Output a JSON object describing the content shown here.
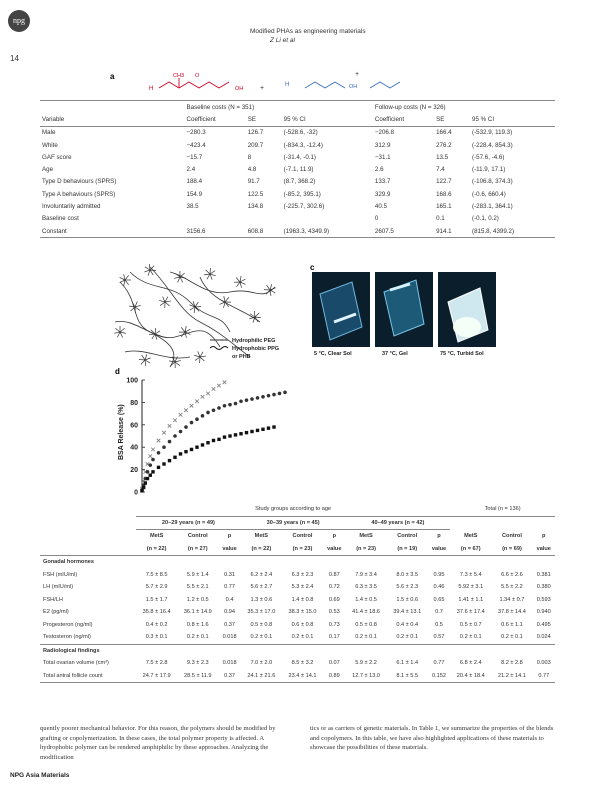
{
  "header": {
    "logo": "npg",
    "title": "Modified PHAs as engineering materials",
    "authors": "Z Li et al",
    "page_number": "14"
  },
  "panels": {
    "a": {
      "label": "a",
      "formula": {
        "h1": "H",
        "ch3": "CH3",
        "o": "O",
        "oh": "OH",
        "plus": "+"
      }
    },
    "c": {
      "label": "c",
      "captions": [
        "5 °C, Clear Sol",
        "37 °C, Gel",
        "75 °C, Turbid Sol"
      ]
    },
    "b": {
      "legend": [
        "Hydrophilic PEG",
        "Hydrophobic PPG or PHB"
      ]
    },
    "d": {
      "label": "d"
    }
  },
  "table1": {
    "group_headers": [
      "Baseline costs (N = 351)",
      "Follow-up costs (N = 326)"
    ],
    "columns": [
      "Variable",
      "Coefficient",
      "SE",
      "95 % CI",
      "Coefficient",
      "SE",
      "95 % CI"
    ],
    "rows": [
      [
        "Male",
        "−280.3",
        "126.7",
        "(-528.6, -32)",
        "−206.8",
        "166.4",
        "(-532.9, 119.3)"
      ],
      [
        "White",
        "−423.4",
        "209.7",
        "(-834.3, -12.4)",
        "312.9",
        "276.2",
        "(-228.4, 854.3)"
      ],
      [
        "GAF score",
        "−15.7",
        "8",
        "(-31.4, -0.1)",
        "−31.1",
        "13.5",
        "(-57.6, -4.6)"
      ],
      [
        "Age",
        "2.4",
        "4.8",
        "(-7.1, 11.9)",
        "2.6",
        "7.4",
        "(-11.9, 17.1)"
      ],
      [
        "Type D behaviours (SPRS)",
        "188.4",
        "91.7",
        "(8.7, 368.2)",
        "133.7",
        "122.7",
        "(-106.8, 374.3)"
      ],
      [
        "Type A behaviours (SPRS)",
        "154.9",
        "122.5",
        "(-85.2, 395.1)",
        "329.9",
        "168.6",
        "(-0.6, 660.4)"
      ],
      [
        "Involuntarily admitted",
        "38.5",
        "134.8",
        "(-225.7, 302.6)",
        "40.5",
        "165.1",
        "(-283.1, 364.1)"
      ],
      [
        "Baseline cost",
        "",
        "",
        "",
        "0",
        "0.1",
        "(-0.1, 0.2)"
      ],
      [
        "Constant",
        "3156.6",
        "608.8",
        "(1963.3, 4349.9)",
        "2607.5",
        "914.1",
        "(815.8, 4399.2)"
      ]
    ]
  },
  "chart_data": {
    "type": "scatter",
    "title": "",
    "xlabel": "",
    "ylabel": "BSA Release (%)",
    "ylim": [
      0,
      100
    ],
    "yticks": [
      "0",
      "20",
      "40",
      "60",
      "80",
      "100"
    ],
    "xlim": [
      0,
      30
    ],
    "series": [
      {
        "marker": "x",
        "x": [
          0,
          0.3,
          0.6,
          1,
          1.5,
          2,
          3,
          4,
          5,
          6,
          7,
          8,
          9,
          10,
          11,
          12,
          13,
          14,
          15
        ],
        "y": [
          3,
          10,
          18,
          25,
          32,
          38,
          46,
          53,
          59,
          64,
          69,
          73,
          77,
          81,
          85,
          88,
          92,
          95,
          98
        ]
      },
      {
        "marker": "circle",
        "x": [
          0,
          0.3,
          0.6,
          1,
          1.5,
          2,
          3,
          4,
          5,
          6,
          7,
          8,
          9,
          10,
          11,
          12,
          13,
          14,
          15,
          16,
          17,
          18,
          19,
          20,
          21,
          22,
          23,
          24,
          25,
          26
        ],
        "y": [
          2,
          6,
          12,
          18,
          24,
          29,
          35,
          40,
          45,
          50,
          54,
          58,
          62,
          65,
          68,
          71,
          73,
          75,
          77,
          78,
          79,
          81,
          82,
          83,
          84,
          85,
          86,
          87,
          88,
          89
        ]
      },
      {
        "marker": "square",
        "x": [
          0,
          0.3,
          0.6,
          1,
          1.5,
          2,
          3,
          4,
          5,
          6,
          7,
          8,
          9,
          10,
          11,
          12,
          13,
          14,
          15,
          16,
          17,
          18,
          19,
          20,
          21,
          22,
          23,
          24
        ],
        "y": [
          1,
          4,
          8,
          12,
          15,
          18,
          22,
          25,
          28,
          31,
          34,
          36,
          38,
          40,
          42,
          44,
          46,
          47,
          49,
          50,
          51,
          52,
          53,
          54,
          55,
          56,
          57,
          58
        ]
      }
    ]
  },
  "table2": {
    "title": "Study groups according to age",
    "total": "Total (n = 136)",
    "age_groups": [
      "20–29 years (n = 49)",
      "30–39 years (n = 45)",
      "40–49 years (n = 42)"
    ],
    "col_heads": [
      [
        "MetS",
        "(n = 22)"
      ],
      [
        "Control",
        "(n = 27)"
      ],
      [
        "p",
        "value"
      ],
      [
        "MetS",
        "(n = 22)"
      ],
      [
        "Control",
        "(n = 23)"
      ],
      [
        "p",
        "value"
      ],
      [
        "MetS",
        "(n = 23)"
      ],
      [
        "Control",
        "(n = 19)"
      ],
      [
        "p",
        "value"
      ],
      [
        "MetS",
        "(n = 67)"
      ],
      [
        "Control",
        "(n = 69)"
      ],
      [
        "p",
        "value"
      ]
    ],
    "sections": [
      {
        "name": "Gonadal hormones",
        "rows": [
          [
            "FSH (mIU/ml)",
            "7.5 ± 8.5",
            "5.9 ± 1.4",
            "0.31",
            "6.2 ± 2.4",
            "6.3 ± 2.3",
            "0.87",
            "7.9 ± 3.4",
            "8.0 ± 3.5",
            "0.95",
            "7.3 ± 5.4",
            "6.6 ± 2.6",
            "0.381"
          ],
          [
            "LH (mIU/ml)",
            "5.7 ± 2.9",
            "5.5 ± 2.1",
            "0.77",
            "5.6 ± 2.7",
            "5.3 ± 2.4",
            "0.72",
            "6.3 ± 3.5",
            "5.6 ± 2.3",
            "0.46",
            "5.92 ± 3.1",
            "5.5 ± 2.2",
            "0.380"
          ],
          [
            "FSH/LH",
            "1.5 ± 1.7",
            "1.2 ± 0.5",
            "0.4",
            "1.3 ± 0.6",
            "1.4 ± 0.8",
            "0.69",
            "1.4 ± 0.5",
            "1.5 ± 0.6",
            "0.65",
            "1.41 ± 1.1",
            "1.34 ± 0.7",
            "0.593"
          ],
          [
            "E2 (pg/ml)",
            "35.8 ± 16.4",
            "36.1 ± 14.9",
            "0.94",
            "35.3 ± 17.0",
            "38.3 ± 15.0",
            "0.53",
            "41.4 ± 18.6",
            "39.4 ± 13.1",
            "0.7",
            "37.6 ± 17.4",
            "37.8 ± 14.4",
            "0.940"
          ],
          [
            "Progesteron (ng/ml)",
            "0.4 ± 0.2",
            "0.8 ± 1.6",
            "0.37",
            "0.5 ± 0.8",
            "0.6 ± 0.8",
            "0.73",
            "0.5 ± 0.8",
            "0.4 ± 0.4",
            "0.5",
            "0.5 ± 0.7",
            "0.6 ± 1.1",
            "0.495"
          ],
          [
            "Testosteron (ng/ml)",
            "0.3 ± 0.1",
            "0.2 ± 0.1",
            "0.018",
            "0.2 ± 0.1",
            "0.2 ± 0.1",
            "0.17",
            "0.2 ± 0.1",
            "0.2 ± 0.1",
            "0.57",
            "0.2 ± 0.1",
            "0.2 ± 0.1",
            "0.024"
          ]
        ]
      },
      {
        "name": "Radiological findings",
        "rows": [
          [
            "Total ovarian volume (cm³)",
            "7.5 ± 2.8",
            "9.3 ± 2.3",
            "0.018",
            "7.0 ± 2.0",
            "8.5 ± 3.2",
            "0.07",
            "5.9 ± 2.2",
            "6.1 ± 1.4",
            "0.77",
            "6.8 ± 2.4",
            "8.2 ± 2.8",
            "0.003"
          ],
          [
            "Total antral follicle count",
            "24.7 ± 17.9",
            "28.5 ± 11.9",
            "0.37",
            "24.1 ± 21.6",
            "23.4 ± 14.1",
            "0.89",
            "12.7 ± 13.0",
            "8.1 ± 5.5",
            "0.152",
            "20.4 ± 18.4",
            "21.2 ± 14.1",
            "0.77"
          ]
        ]
      }
    ]
  },
  "body_text": {
    "left": "quently poorer mechanical behavior. For this reason, the polymers should be modified by grafting or copolymerization. In these cases, the total polymer property is affected. A hydrophobic polymer can be rendered amphiphilic by these approaches. Analyzing the modification",
    "right": "tics or as carriers of genetic materials. In Table 1, we summarize the properties of the blends and copolymers. In this table, we have also highlighted applications of these materials to showcase the possibilities of these materials."
  },
  "footer": {
    "journal": "NPG Asia Materials"
  }
}
